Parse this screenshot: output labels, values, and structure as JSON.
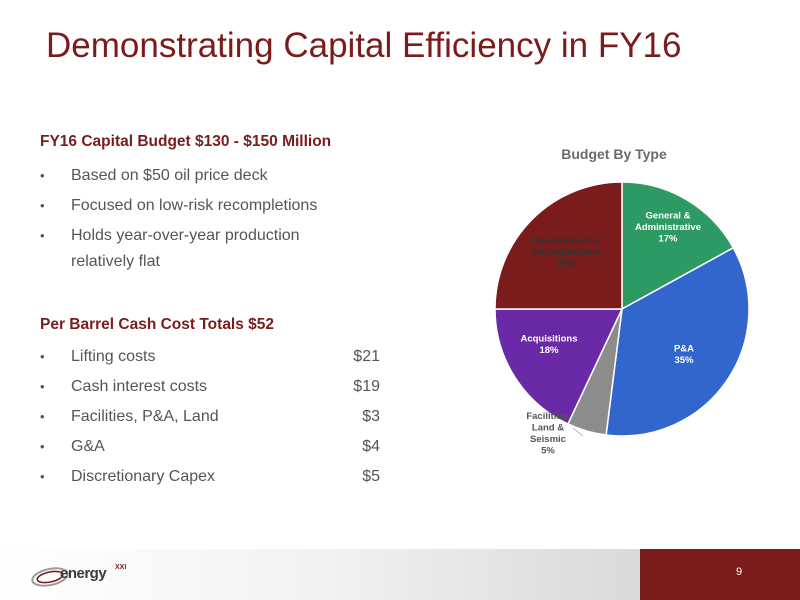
{
  "slide": {
    "title": "Demonstrating Capital Efficiency in FY16",
    "page_number": "9"
  },
  "budget_section": {
    "heading": "FY16 Capital Budget $130 - $150 Million",
    "bullets": [
      "Based on $50 oil price deck",
      "Focused on low-risk recompletions",
      "Holds year-over-year production relatively flat"
    ]
  },
  "cost_section": {
    "heading": "Per Barrel Cash Cost Totals $52",
    "items": [
      {
        "label": "Lifting costs",
        "value": "$21"
      },
      {
        "label": "Cash interest costs",
        "value": "$19"
      },
      {
        "label": "Facilities, P&A, Land",
        "value": "$3"
      },
      {
        "label": "G&A",
        "value": "$4"
      },
      {
        "label": "Discretionary Capex",
        "value": "$5"
      }
    ]
  },
  "bullet_glyph": "•",
  "logo": {
    "word": "energy",
    "superscript": "XXI"
  },
  "colors": {
    "accent": "#7b1c1c",
    "general_admin": "#2e9a63",
    "pa": "#3366cc",
    "facilities": "#8c8c8c",
    "acquisitions": "#6a2aa8",
    "development": "#7b1c1c"
  },
  "chart_data": {
    "type": "pie",
    "title": "Budget By Type",
    "slices": [
      {
        "label": [
          "General &",
          "Administrative"
        ],
        "value": 17,
        "pct_label": "17%"
      },
      {
        "label": [
          "P&A"
        ],
        "value": 35,
        "pct_label": "35%"
      },
      {
        "label": [
          "Facilities,",
          "Land &",
          "Seismic"
        ],
        "value": 5,
        "pct_label": "5%"
      },
      {
        "label": [
          "Acquisitions"
        ],
        "value": 18,
        "pct_label": "18%"
      },
      {
        "label": [
          "Development &",
          "Recompletions"
        ],
        "value": 25,
        "pct_label": "25%"
      }
    ]
  }
}
